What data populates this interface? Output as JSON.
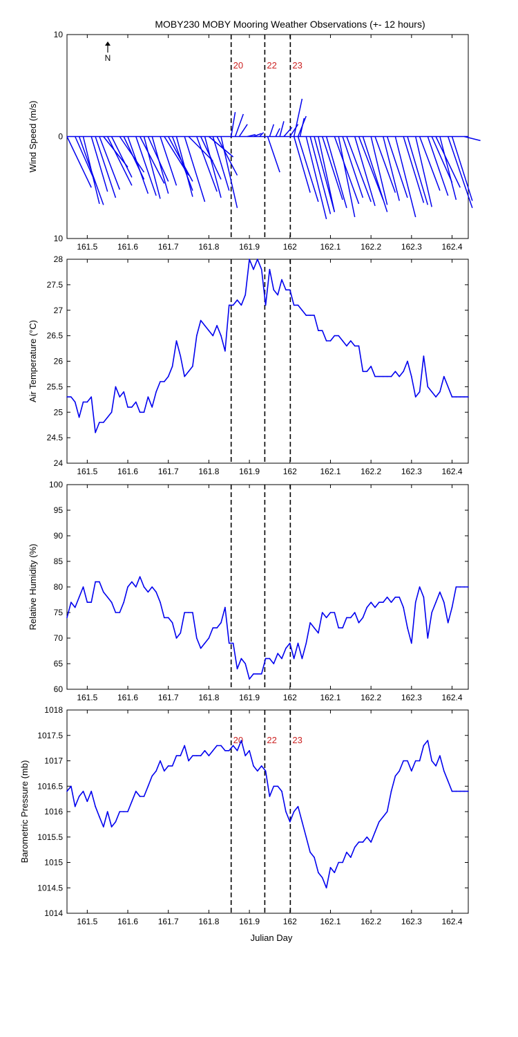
{
  "title": "MOBY230 MOBY Mooring Weather Observations (+- 12 hours)",
  "xlabel": "Julian Day",
  "x_tick_labels": [
    "161.5",
    "161.6",
    "161.7",
    "161.8",
    "161.9",
    "162",
    "162.1",
    "162.2",
    "162.3",
    "162.4"
  ],
  "north_label": "N",
  "colors": {
    "line": "#0000ee",
    "marker_label": "#cc2222",
    "axis": "#000000"
  },
  "chart_data": [
    {
      "type": "line",
      "subtype": "wind-vectors",
      "ylabel": "Wind Speed (m/s)",
      "xlim": [
        161.45,
        162.44
      ],
      "ylim": [
        -10,
        10
      ],
      "y_tick_labels": [
        "10",
        "0",
        "10"
      ],
      "markers": [
        {
          "x": 161.855,
          "label": "20"
        },
        {
          "x": 161.938,
          "label": "22"
        },
        {
          "x": 162.001,
          "label": "23"
        }
      ],
      "vectors": [
        {
          "x": 161.45,
          "u": 0.06,
          "v": -5.0
        },
        {
          "x": 161.47,
          "u": 0.05,
          "v": -4.5
        },
        {
          "x": 161.48,
          "u": 0.06,
          "v": -6.7
        },
        {
          "x": 161.49,
          "u": 0.04,
          "v": -6.6
        },
        {
          "x": 161.51,
          "u": 0.04,
          "v": -5.4
        },
        {
          "x": 161.52,
          "u": 0.05,
          "v": -6.0
        },
        {
          "x": 161.53,
          "u": 0.05,
          "v": -5.2
        },
        {
          "x": 161.54,
          "u": 0.06,
          "v": -3.0
        },
        {
          "x": 161.55,
          "u": 0.06,
          "v": -4.8
        },
        {
          "x": 161.56,
          "u": 0.05,
          "v": -4.0
        },
        {
          "x": 161.58,
          "u": 0.06,
          "v": -3.5
        },
        {
          "x": 161.59,
          "u": 0.05,
          "v": -4.2
        },
        {
          "x": 161.6,
          "u": 0.05,
          "v": -5.6
        },
        {
          "x": 161.62,
          "u": 0.05,
          "v": -5.8
        },
        {
          "x": 161.63,
          "u": 0.06,
          "v": -4.6
        },
        {
          "x": 161.64,
          "u": 0.04,
          "v": -6.1
        },
        {
          "x": 161.65,
          "u": 0.05,
          "v": -4.4
        },
        {
          "x": 161.66,
          "u": 0.04,
          "v": -5.6
        },
        {
          "x": 161.68,
          "u": 0.04,
          "v": -4.8
        },
        {
          "x": 161.69,
          "u": 0.06,
          "v": -3.8
        },
        {
          "x": 161.7,
          "u": 0.06,
          "v": -4.4
        },
        {
          "x": 161.71,
          "u": 0.05,
          "v": -5.3
        },
        {
          "x": 161.72,
          "u": 0.04,
          "v": -5.9
        },
        {
          "x": 161.74,
          "u": 0.05,
          "v": -6.4
        },
        {
          "x": 161.75,
          "u": 0.06,
          "v": -2.4
        },
        {
          "x": 161.77,
          "u": 0.05,
          "v": -5.4
        },
        {
          "x": 161.78,
          "u": 0.05,
          "v": -4.2
        },
        {
          "x": 161.79,
          "u": 0.04,
          "v": -6.0
        },
        {
          "x": 161.8,
          "u": 0.06,
          "v": -2.0
        },
        {
          "x": 161.81,
          "u": 0.04,
          "v": -5.3
        },
        {
          "x": 161.82,
          "u": 0.05,
          "v": -3.8
        },
        {
          "x": 161.83,
          "u": 0.04,
          "v": -7.0
        },
        {
          "x": 161.855,
          "u": 0.01,
          "v": 2.4
        },
        {
          "x": 161.865,
          "u": 0.02,
          "v": 2.2
        },
        {
          "x": 161.875,
          "u": 0.02,
          "v": 1.2
        },
        {
          "x": 161.895,
          "u": 0.02,
          "v": 0.2
        },
        {
          "x": 161.91,
          "u": 0.02,
          "v": 0.3
        },
        {
          "x": 161.925,
          "u": 0.01,
          "v": 0.4
        },
        {
          "x": 161.945,
          "u": 0.03,
          "v": -3.5
        },
        {
          "x": 161.95,
          "u": 0.01,
          "v": 1.2
        },
        {
          "x": 161.965,
          "u": 0.01,
          "v": 0.8
        },
        {
          "x": 161.975,
          "u": 0.01,
          "v": 1.5
        },
        {
          "x": 161.985,
          "u": 0.02,
          "v": 0.9
        },
        {
          "x": 162.0,
          "u": 0.02,
          "v": 1.2
        },
        {
          "x": 162.01,
          "u": 0.02,
          "v": 3.7
        },
        {
          "x": 162.02,
          "u": 0.02,
          "v": 2.0
        },
        {
          "x": 162.025,
          "u": 0.01,
          "v": 1.8
        },
        {
          "x": 162.01,
          "u": 0.04,
          "v": -5.5
        },
        {
          "x": 162.02,
          "u": 0.05,
          "v": -6.4
        },
        {
          "x": 162.04,
          "u": 0.05,
          "v": -8.1
        },
        {
          "x": 162.05,
          "u": 0.05,
          "v": -7.6
        },
        {
          "x": 162.06,
          "u": 0.05,
          "v": -7.4
        },
        {
          "x": 162.07,
          "u": 0.04,
          "v": -7.4
        },
        {
          "x": 162.08,
          "u": 0.05,
          "v": -6.2
        },
        {
          "x": 162.09,
          "u": 0.05,
          "v": -7.0
        },
        {
          "x": 162.11,
          "u": 0.06,
          "v": -6.6
        },
        {
          "x": 162.12,
          "u": 0.04,
          "v": -7.9
        },
        {
          "x": 162.13,
          "u": 0.05,
          "v": -6.0
        },
        {
          "x": 162.14,
          "u": 0.06,
          "v": -6.4
        },
        {
          "x": 162.16,
          "u": 0.05,
          "v": -6.8
        },
        {
          "x": 162.17,
          "u": 0.06,
          "v": -6.2
        },
        {
          "x": 162.18,
          "u": 0.06,
          "v": -7.4
        },
        {
          "x": 162.2,
          "u": 0.04,
          "v": -6.7
        },
        {
          "x": 162.21,
          "u": 0.05,
          "v": -5.5
        },
        {
          "x": 162.23,
          "u": 0.04,
          "v": -6.3
        },
        {
          "x": 162.24,
          "u": 0.05,
          "v": -6.0
        },
        {
          "x": 162.26,
          "u": 0.05,
          "v": -7.9
        },
        {
          "x": 162.28,
          "u": 0.05,
          "v": -6.5
        },
        {
          "x": 162.29,
          "u": 0.05,
          "v": -6.7
        },
        {
          "x": 162.31,
          "u": 0.04,
          "v": -6.9
        },
        {
          "x": 162.32,
          "u": 0.05,
          "v": -5.3
        },
        {
          "x": 162.34,
          "u": 0.05,
          "v": -5.8
        },
        {
          "x": 162.35,
          "u": 0.05,
          "v": -4.5
        },
        {
          "x": 162.36,
          "u": 0.06,
          "v": -5.0
        },
        {
          "x": 162.37,
          "u": 0.04,
          "v": -6.2
        },
        {
          "x": 162.39,
          "u": 0.06,
          "v": -7.0
        },
        {
          "x": 162.4,
          "u": 0.05,
          "v": -6.3
        },
        {
          "x": 162.43,
          "u": 0.04,
          "v": -0.4
        }
      ]
    },
    {
      "type": "line",
      "ylabel": "Air Temperature (°C)",
      "xlim": [
        161.45,
        162.44
      ],
      "ylim": [
        24,
        28
      ],
      "y_tick_labels": [
        "24",
        "24.5",
        "25",
        "25.5",
        "26",
        "26.5",
        "27",
        "27.5",
        "28"
      ],
      "markers": [
        {
          "x": 161.855
        },
        {
          "x": 161.938
        },
        {
          "x": 162.001
        }
      ],
      "x": [
        161.45,
        161.46,
        161.47,
        161.48,
        161.49,
        161.5,
        161.51,
        161.52,
        161.53,
        161.54,
        161.55,
        161.56,
        161.57,
        161.58,
        161.59,
        161.6,
        161.61,
        161.62,
        161.63,
        161.64,
        161.65,
        161.66,
        161.67,
        161.68,
        161.69,
        161.7,
        161.71,
        161.72,
        161.73,
        161.74,
        161.75,
        161.76,
        161.77,
        161.78,
        161.79,
        161.8,
        161.81,
        161.82,
        161.83,
        161.84,
        161.85,
        161.86,
        161.87,
        161.88,
        161.89,
        161.9,
        161.91,
        161.92,
        161.93,
        161.94,
        161.95,
        161.96,
        161.97,
        161.98,
        161.99,
        162.0,
        162.01,
        162.02,
        162.03,
        162.04,
        162.05,
        162.06,
        162.07,
        162.08,
        162.09,
        162.1,
        162.11,
        162.12,
        162.13,
        162.14,
        162.15,
        162.16,
        162.17,
        162.18,
        162.19,
        162.2,
        162.21,
        162.22,
        162.23,
        162.24,
        162.25,
        162.26,
        162.27,
        162.28,
        162.29,
        162.3,
        162.31,
        162.32,
        162.33,
        162.34,
        162.35,
        162.36,
        162.37,
        162.38,
        162.39,
        162.4,
        162.41,
        162.42,
        162.43,
        162.44
      ],
      "y": [
        25.3,
        25.3,
        25.2,
        24.9,
        25.2,
        25.2,
        25.3,
        24.6,
        24.8,
        24.8,
        24.9,
        25.0,
        25.5,
        25.3,
        25.4,
        25.1,
        25.1,
        25.2,
        25.0,
        25.0,
        25.3,
        25.1,
        25.4,
        25.6,
        25.6,
        25.7,
        25.9,
        26.4,
        26.1,
        25.7,
        25.8,
        25.9,
        26.5,
        26.8,
        26.7,
        26.6,
        26.5,
        26.7,
        26.5,
        26.2,
        27.1,
        27.1,
        27.2,
        27.1,
        27.3,
        28.0,
        27.8,
        28.0,
        27.8,
        27.1,
        27.8,
        27.4,
        27.3,
        27.6,
        27.4,
        27.4,
        27.1,
        27.1,
        27.0,
        26.9,
        26.9,
        26.9,
        26.6,
        26.6,
        26.4,
        26.4,
        26.5,
        26.5,
        26.4,
        26.3,
        26.4,
        26.3,
        26.3,
        25.8,
        25.8,
        25.9,
        25.7,
        25.7,
        25.7,
        25.7,
        25.7,
        25.8,
        25.7,
        25.8,
        26.0,
        25.7,
        25.3,
        25.4,
        26.1,
        25.5,
        25.4,
        25.3,
        25.4,
        25.7,
        25.5,
        25.3,
        25.3,
        25.3,
        25.3,
        25.3
      ]
    },
    {
      "type": "line",
      "ylabel": "Relative Humidity (%)",
      "xlim": [
        161.45,
        162.44
      ],
      "ylim": [
        60,
        100
      ],
      "y_tick_labels": [
        "60",
        "65",
        "70",
        "75",
        "80",
        "85",
        "90",
        "95",
        "100"
      ],
      "markers": [
        {
          "x": 161.855
        },
        {
          "x": 161.938
        },
        {
          "x": 162.001
        }
      ],
      "x": [
        161.45,
        161.46,
        161.47,
        161.48,
        161.49,
        161.5,
        161.51,
        161.52,
        161.53,
        161.54,
        161.55,
        161.56,
        161.57,
        161.58,
        161.59,
        161.6,
        161.61,
        161.62,
        161.63,
        161.64,
        161.65,
        161.66,
        161.67,
        161.68,
        161.69,
        161.7,
        161.71,
        161.72,
        161.73,
        161.74,
        161.75,
        161.76,
        161.77,
        161.78,
        161.79,
        161.8,
        161.81,
        161.82,
        161.83,
        161.84,
        161.85,
        161.86,
        161.87,
        161.88,
        161.89,
        161.9,
        161.91,
        161.92,
        161.93,
        161.94,
        161.95,
        161.96,
        161.97,
        161.98,
        161.99,
        162.0,
        162.01,
        162.02,
        162.03,
        162.04,
        162.05,
        162.06,
        162.07,
        162.08,
        162.09,
        162.1,
        162.11,
        162.12,
        162.13,
        162.14,
        162.15,
        162.16,
        162.17,
        162.18,
        162.19,
        162.2,
        162.21,
        162.22,
        162.23,
        162.24,
        162.25,
        162.26,
        162.27,
        162.28,
        162.29,
        162.3,
        162.31,
        162.32,
        162.33,
        162.34,
        162.35,
        162.36,
        162.37,
        162.38,
        162.39,
        162.4,
        162.41,
        162.42,
        162.43,
        162.44
      ],
      "y": [
        74,
        77,
        76,
        78,
        80,
        77,
        77,
        81,
        81,
        79,
        78,
        77,
        75,
        75,
        77,
        80,
        81,
        80,
        82,
        80,
        79,
        80,
        79,
        77,
        74,
        74,
        73,
        70,
        71,
        75,
        75,
        75,
        70,
        68,
        69,
        70,
        72,
        72,
        73,
        76,
        69,
        69,
        64,
        66,
        65,
        62,
        63,
        63,
        63,
        66,
        66,
        65,
        67,
        66,
        68,
        69,
        66,
        69,
        66,
        69,
        73,
        72,
        71,
        75,
        74,
        75,
        75,
        72,
        72,
        74,
        74,
        75,
        73,
        74,
        76,
        77,
        76,
        77,
        77,
        78,
        77,
        78,
        78,
        76,
        72,
        69,
        77,
        80,
        78,
        70,
        75,
        77,
        79,
        77,
        73,
        76,
        80,
        80,
        80,
        80
      ]
    },
    {
      "type": "line",
      "ylabel": "Barometric Pressure (mb)",
      "xlim": [
        161.45,
        162.44
      ],
      "ylim": [
        1014,
        1018
      ],
      "y_tick_labels": [
        "1014",
        "1014.5",
        "1015",
        "1015.5",
        "1016",
        "1016.5",
        "1017",
        "1017.5",
        "1018"
      ],
      "markers": [
        {
          "x": 161.855,
          "label": "20"
        },
        {
          "x": 161.938,
          "label": "22"
        },
        {
          "x": 162.001,
          "label": "23"
        }
      ],
      "x": [
        161.45,
        161.46,
        161.47,
        161.48,
        161.49,
        161.5,
        161.51,
        161.52,
        161.53,
        161.54,
        161.55,
        161.56,
        161.57,
        161.58,
        161.59,
        161.6,
        161.61,
        161.62,
        161.63,
        161.64,
        161.65,
        161.66,
        161.67,
        161.68,
        161.69,
        161.7,
        161.71,
        161.72,
        161.73,
        161.74,
        161.75,
        161.76,
        161.77,
        161.78,
        161.79,
        161.8,
        161.81,
        161.82,
        161.83,
        161.84,
        161.85,
        161.86,
        161.87,
        161.88,
        161.89,
        161.9,
        161.91,
        161.92,
        161.93,
        161.94,
        161.95,
        161.96,
        161.97,
        161.98,
        161.99,
        162.0,
        162.01,
        162.02,
        162.03,
        162.04,
        162.05,
        162.06,
        162.07,
        162.08,
        162.09,
        162.1,
        162.11,
        162.12,
        162.13,
        162.14,
        162.15,
        162.16,
        162.17,
        162.18,
        162.19,
        162.2,
        162.21,
        162.22,
        162.23,
        162.24,
        162.25,
        162.26,
        162.27,
        162.28,
        162.29,
        162.3,
        162.31,
        162.32,
        162.33,
        162.34,
        162.35,
        162.36,
        162.37,
        162.38,
        162.39,
        162.4,
        162.41,
        162.42,
        162.43,
        162.44
      ],
      "y": [
        1016.4,
        1016.5,
        1016.1,
        1016.3,
        1016.4,
        1016.2,
        1016.4,
        1016.1,
        1015.9,
        1015.7,
        1016.0,
        1015.7,
        1015.8,
        1016.0,
        1016.0,
        1016.0,
        1016.2,
        1016.4,
        1016.3,
        1016.3,
        1016.5,
        1016.7,
        1016.8,
        1017.0,
        1016.8,
        1016.9,
        1016.9,
        1017.1,
        1017.1,
        1017.3,
        1017.0,
        1017.1,
        1017.1,
        1017.1,
        1017.2,
        1017.1,
        1017.2,
        1017.3,
        1017.3,
        1017.2,
        1017.2,
        1017.3,
        1017.2,
        1017.4,
        1017.1,
        1017.2,
        1016.9,
        1016.8,
        1016.9,
        1016.8,
        1016.3,
        1016.5,
        1016.5,
        1016.4,
        1016.0,
        1015.8,
        1016.0,
        1016.1,
        1015.8,
        1015.5,
        1015.2,
        1015.1,
        1014.8,
        1014.7,
        1014.5,
        1014.9,
        1014.8,
        1015.0,
        1015.0,
        1015.2,
        1015.1,
        1015.3,
        1015.4,
        1015.4,
        1015.5,
        1015.4,
        1015.6,
        1015.8,
        1015.9,
        1016.0,
        1016.4,
        1016.7,
        1016.8,
        1017.0,
        1017.0,
        1016.8,
        1017.0,
        1017.0,
        1017.3,
        1017.4,
        1017.0,
        1016.9,
        1017.1,
        1016.8,
        1016.6,
        1016.4,
        1016.4,
        1016.4,
        1016.4,
        1016.4
      ]
    }
  ]
}
